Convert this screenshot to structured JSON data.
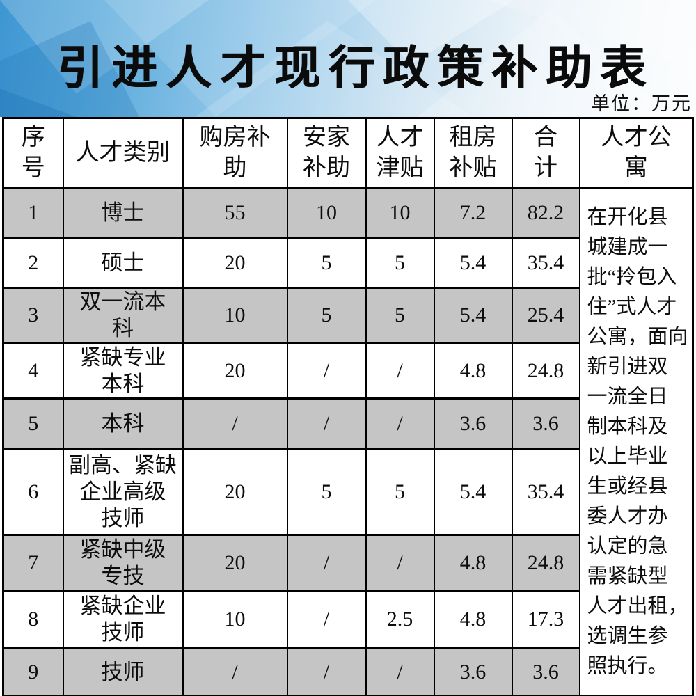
{
  "header": {
    "title": "引进人才现行政策补助表",
    "unit": "单位：万元"
  },
  "colors": {
    "banner_blue": "#3e96d2",
    "row_shade": "#c5c5c5",
    "border": "#000000",
    "text": "#0d0d0d"
  },
  "table": {
    "columns": [
      "序\n号",
      "人才类别",
      "购房补\n助",
      "安家\n补助",
      "人才\n津贴",
      "租房\n补贴",
      "合\n计",
      "人才公\n寓"
    ],
    "rows": [
      {
        "no": "1",
        "category": "博士",
        "values": [
          "55",
          "10",
          "10",
          "7.2",
          "82.2"
        ]
      },
      {
        "no": "2",
        "category": "硕士",
        "values": [
          "20",
          "5",
          "5",
          "5.4",
          "35.4"
        ]
      },
      {
        "no": "3",
        "category": "双一流本\n科",
        "values": [
          "10",
          "5",
          "5",
          "5.4",
          "25.4"
        ]
      },
      {
        "no": "4",
        "category": "紧缺专业\n本科",
        "values": [
          "20",
          "/",
          "/",
          "4.8",
          "24.8"
        ]
      },
      {
        "no": "5",
        "category": "本科",
        "values": [
          "/",
          "/",
          "/",
          "3.6",
          "3.6"
        ]
      },
      {
        "no": "6",
        "category": "副高、紧缺\n企业高级\n技师",
        "values": [
          "20",
          "5",
          "5",
          "5.4",
          "35.4"
        ]
      },
      {
        "no": "7",
        "category": "紧缺中级\n专技",
        "values": [
          "20",
          "/",
          "/",
          "4.8",
          "24.8"
        ]
      },
      {
        "no": "8",
        "category": "紧缺企业\n技师",
        "values": [
          "10",
          "/",
          "2.5",
          "4.8",
          "17.3"
        ]
      },
      {
        "no": "9",
        "category": "技师",
        "values": [
          "/",
          "/",
          "/",
          "3.6",
          "3.6"
        ]
      }
    ],
    "apartment_note": "在开化县\n城建成一\n批“拎包入\n住”式人才\n公寓，面向\n新引进双\n一流全日\n制本科及\n以上毕业\n生或经县\n委人才办\n认定的急\n需紧缺型\n人才出租，\n选调生参\n照执行。"
  }
}
